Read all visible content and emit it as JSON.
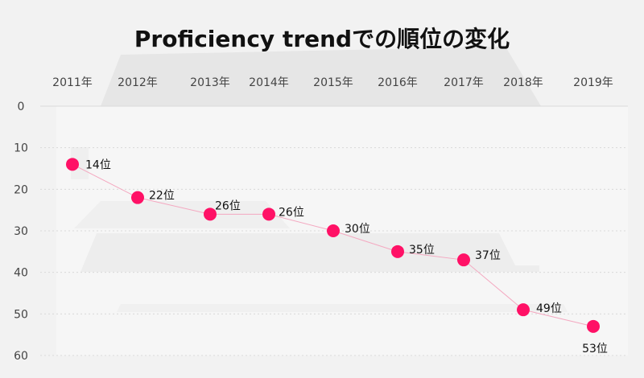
{
  "chart_data": {
    "type": "line",
    "title": "Proficiency trendでの順位の変化",
    "categories": [
      "2011年",
      "2012年",
      "2013年",
      "2014年",
      "2015年",
      "2016年",
      "2017年",
      "2018年",
      "2019年"
    ],
    "series": [
      {
        "values": [
          14,
          22,
          26,
          26,
          30,
          35,
          37,
          49,
          53
        ],
        "labels": [
          "14位",
          "22位",
          "26位",
          "26位",
          "30位",
          "35位",
          "37位",
          "49位",
          "53位"
        ]
      }
    ],
    "yticks": [
      0,
      10,
      20,
      30,
      40,
      50,
      60
    ],
    "ylim": [
      0,
      60
    ],
    "y_reversed": true,
    "x_axis_position": "top",
    "grid": "horizontal dashed",
    "legend": "none",
    "colors": {
      "marker": "#ff1166",
      "line": "#f4a8c0"
    }
  }
}
